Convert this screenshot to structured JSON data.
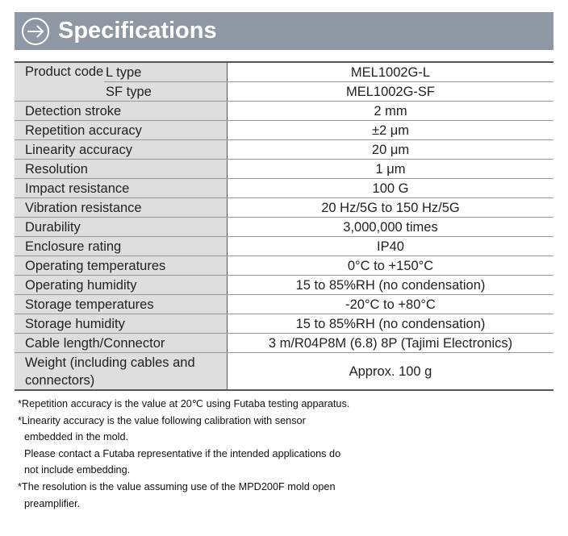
{
  "header": {
    "title": "Specifications"
  },
  "table": {
    "product_code": {
      "label": "Product code",
      "variants": [
        [
          "L type",
          "MEL1002G-L"
        ],
        [
          "SF type",
          "MEL1002G-SF"
        ]
      ]
    },
    "rows": [
      [
        "Detection stroke",
        "2 mm"
      ],
      [
        "Repetition accuracy",
        "±2 μm"
      ],
      [
        "Linearity accuracy",
        "20 μm"
      ],
      [
        "Resolution",
        "1 μm"
      ],
      [
        "Impact resistance",
        "100 G"
      ],
      [
        "Vibration resistance",
        "20 Hz/5G to 150 Hz/5G"
      ],
      [
        "Durability",
        "3,000,000 times"
      ],
      [
        "Enclosure rating",
        "IP40"
      ],
      [
        "Operating temperatures",
        "0°C to +150°C"
      ],
      [
        "Operating humidity",
        "15 to 85%RH (no condensation)"
      ],
      [
        "Storage temperatures",
        "-20°C to +80°C"
      ],
      [
        "Storage humidity",
        "15 to 85%RH (no condensation)"
      ],
      [
        "Cable length/Connector",
        "3 m/R04P8M (6.8) 8P (Tajimi Electronics)"
      ],
      [
        "Weight (including cables and connectors)",
        "Approx. 100 g"
      ]
    ]
  },
  "notes": [
    "*Repetition accuracy is the value at 20℃ using Futaba testing apparatus.",
    "*Linearity accuracy is the value following calibration with sensor embedded in the mold.",
    "Please contact a Futaba representative if the intended applications do not include embedding.",
    "*The resolution is the value assuming use of the MPD200F mold open preamplifier."
  ]
}
